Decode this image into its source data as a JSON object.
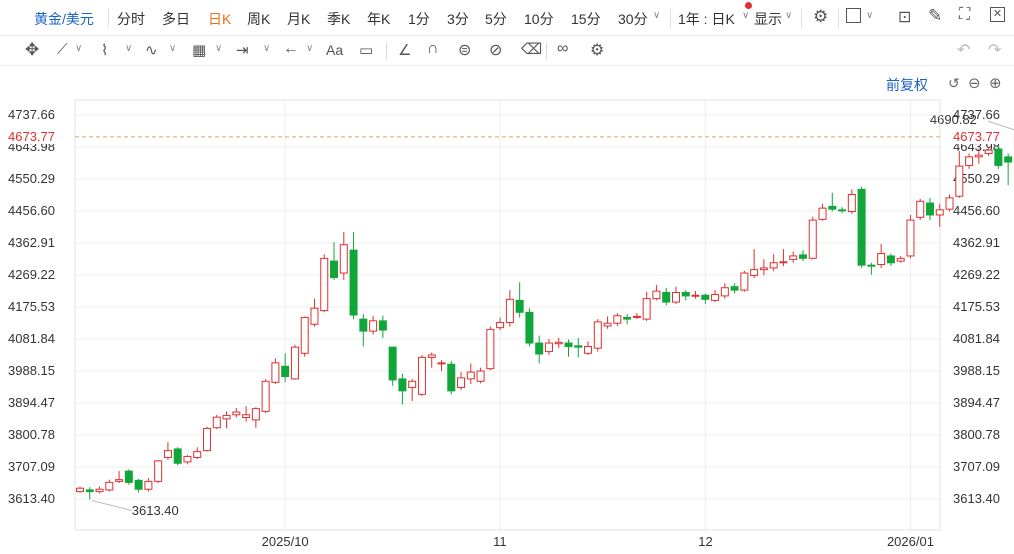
{
  "toolbar": {
    "symbol": "黄金/美元",
    "periods": [
      "分时",
      "多日",
      "日K",
      "周K",
      "月K",
      "季K",
      "年K",
      "1分",
      "3分",
      "5分",
      "10分",
      "15分",
      "30分"
    ],
    "active_period": "日K",
    "range_selector": "1年 : 日K",
    "display_label": "显示",
    "adjust_label": "前复权"
  },
  "colors": {
    "up": "#e03030",
    "down": "#11a63a",
    "dashed": "#e8a060",
    "accent": "#1a64c8"
  },
  "chart_data": {
    "type": "candlestick",
    "y_ticks": [
      "4737.66",
      "4643.98",
      "4550.29",
      "4456.60",
      "4362.91",
      "4269.22",
      "4175.53",
      "4081.84",
      "3988.15",
      "3894.47",
      "3800.78",
      "3707.09",
      "3613.40"
    ],
    "ylim": [
      3613.4,
      4737.66
    ],
    "current_price": "4673.77",
    "x_labels": [
      {
        "label": "2025/10",
        "index": 21
      },
      {
        "label": "11",
        "index": 43
      },
      {
        "label": "12",
        "index": 64
      },
      {
        "label": "2026/01",
        "index": 85
      }
    ],
    "max_annotation": "4690.82",
    "min_annotation": "3613.40",
    "candles": [
      [
        3635,
        3645,
        3632,
        3650
      ],
      [
        3640,
        3635,
        3612,
        3648
      ],
      [
        3635,
        3642,
        3630,
        3650
      ],
      [
        3640,
        3662,
        3635,
        3670
      ],
      [
        3665,
        3670,
        3660,
        3695
      ],
      [
        3695,
        3662,
        3655,
        3700
      ],
      [
        3668,
        3642,
        3632,
        3672
      ],
      [
        3642,
        3665,
        3635,
        3675
      ],
      [
        3665,
        3725,
        3660,
        3728
      ],
      [
        3735,
        3755,
        3728,
        3780
      ],
      [
        3760,
        3718,
        3712,
        3765
      ],
      [
        3722,
        3738,
        3715,
        3742
      ],
      [
        3735,
        3752,
        3730,
        3765
      ],
      [
        3755,
        3820,
        3752,
        3825
      ],
      [
        3822,
        3853,
        3818,
        3860
      ],
      [
        3848,
        3858,
        3820,
        3870
      ],
      [
        3860,
        3868,
        3852,
        3880
      ],
      [
        3852,
        3860,
        3840,
        3885
      ],
      [
        3845,
        3878,
        3822,
        3882
      ],
      [
        3870,
        3958,
        3865,
        3965
      ],
      [
        3955,
        4012,
        3950,
        4025
      ],
      [
        4002,
        3972,
        3955,
        4040
      ],
      [
        3965,
        4058,
        3962,
        4065
      ],
      [
        4040,
        4145,
        4030,
        4148
      ],
      [
        4125,
        4172,
        4118,
        4200
      ],
      [
        4165,
        4318,
        4160,
        4330
      ],
      [
        4310,
        4262,
        4255,
        4365
      ],
      [
        4275,
        4358,
        4255,
        4395
      ],
      [
        4342,
        4152,
        4140,
        4395
      ],
      [
        4140,
        4105,
        4060,
        4155
      ],
      [
        4105,
        4135,
        4095,
        4150
      ],
      [
        4135,
        4108,
        4085,
        4150
      ],
      [
        4058,
        3962,
        3945,
        4058
      ],
      [
        3965,
        3930,
        3890,
        3980
      ],
      [
        3940,
        3958,
        3900,
        3965
      ],
      [
        3920,
        4028,
        3915,
        4035
      ],
      [
        4028,
        4035,
        3998,
        4042
      ],
      [
        4010,
        4012,
        3988,
        4020
      ],
      [
        4008,
        3930,
        3920,
        4018
      ],
      [
        3940,
        3968,
        3932,
        3985
      ],
      [
        3965,
        3985,
        3950,
        4010
      ],
      [
        3958,
        3988,
        3952,
        3998
      ],
      [
        3995,
        4110,
        3990,
        4118
      ],
      [
        4115,
        4130,
        4108,
        4145
      ],
      [
        4130,
        4198,
        4118,
        4225
      ],
      [
        4195,
        4160,
        4145,
        4248
      ],
      [
        4160,
        4070,
        4060,
        4172
      ],
      [
        4070,
        4038,
        4010,
        4092
      ],
      [
        4045,
        4070,
        4035,
        4082
      ],
      [
        4068,
        4072,
        4055,
        4085
      ],
      [
        4070,
        4060,
        4030,
        4080
      ],
      [
        4062,
        4058,
        4028,
        4085
      ],
      [
        4040,
        4060,
        4035,
        4075
      ],
      [
        4055,
        4132,
        4045,
        4140
      ],
      [
        4120,
        4128,
        4112,
        4148
      ],
      [
        4128,
        4150,
        4120,
        4158
      ],
      [
        4145,
        4140,
        4125,
        4155
      ],
      [
        4145,
        4148,
        4140,
        4158
      ],
      [
        4140,
        4200,
        4135,
        4220
      ],
      [
        4200,
        4222,
        4195,
        4240
      ],
      [
        4218,
        4190,
        4180,
        4232
      ],
      [
        4190,
        4218,
        4185,
        4235
      ],
      [
        4218,
        4208,
        4195,
        4225
      ],
      [
        4208,
        4210,
        4200,
        4222
      ],
      [
        4210,
        4198,
        4185,
        4215
      ],
      [
        4195,
        4212,
        4190,
        4225
      ],
      [
        4208,
        4232,
        4200,
        4245
      ],
      [
        4235,
        4225,
        4215,
        4245
      ],
      [
        4225,
        4275,
        4220,
        4282
      ],
      [
        4268,
        4285,
        4260,
        4345
      ],
      [
        4285,
        4290,
        4268,
        4315
      ],
      [
        4290,
        4305,
        4280,
        4330
      ],
      [
        4305,
        4308,
        4295,
        4345
      ],
      [
        4315,
        4325,
        4305,
        4338
      ],
      [
        4328,
        4318,
        4310,
        4342
      ],
      [
        4318,
        4430,
        4315,
        4440
      ],
      [
        4432,
        4465,
        4428,
        4478
      ],
      [
        4470,
        4462,
        4455,
        4510
      ],
      [
        4460,
        4458,
        4450,
        4468
      ],
      [
        4455,
        4505,
        4448,
        4520
      ],
      [
        4520,
        4298,
        4290,
        4528
      ],
      [
        4298,
        4295,
        4270,
        4305
      ],
      [
        4300,
        4332,
        4290,
        4360
      ],
      [
        4325,
        4305,
        4296,
        4332
      ],
      [
        4310,
        4318,
        4305,
        4325
      ],
      [
        4325,
        4430,
        4318,
        4445
      ],
      [
        4438,
        4485,
        4430,
        4492
      ],
      [
        4480,
        4445,
        4430,
        4495
      ],
      [
        4445,
        4460,
        4410,
        4478
      ],
      [
        4462,
        4495,
        4455,
        4505
      ],
      [
        4500,
        4588,
        4495,
        4632
      ],
      [
        4590,
        4615,
        4580,
        4625
      ],
      [
        4615,
        4620,
        4595,
        4640
      ],
      [
        4625,
        4635,
        4618,
        4645
      ],
      [
        4638,
        4590,
        4580,
        4648
      ],
      [
        4615,
        4600,
        4532,
        4625
      ],
      [
        4642,
        4672,
        4638,
        4690
      ]
    ]
  }
}
